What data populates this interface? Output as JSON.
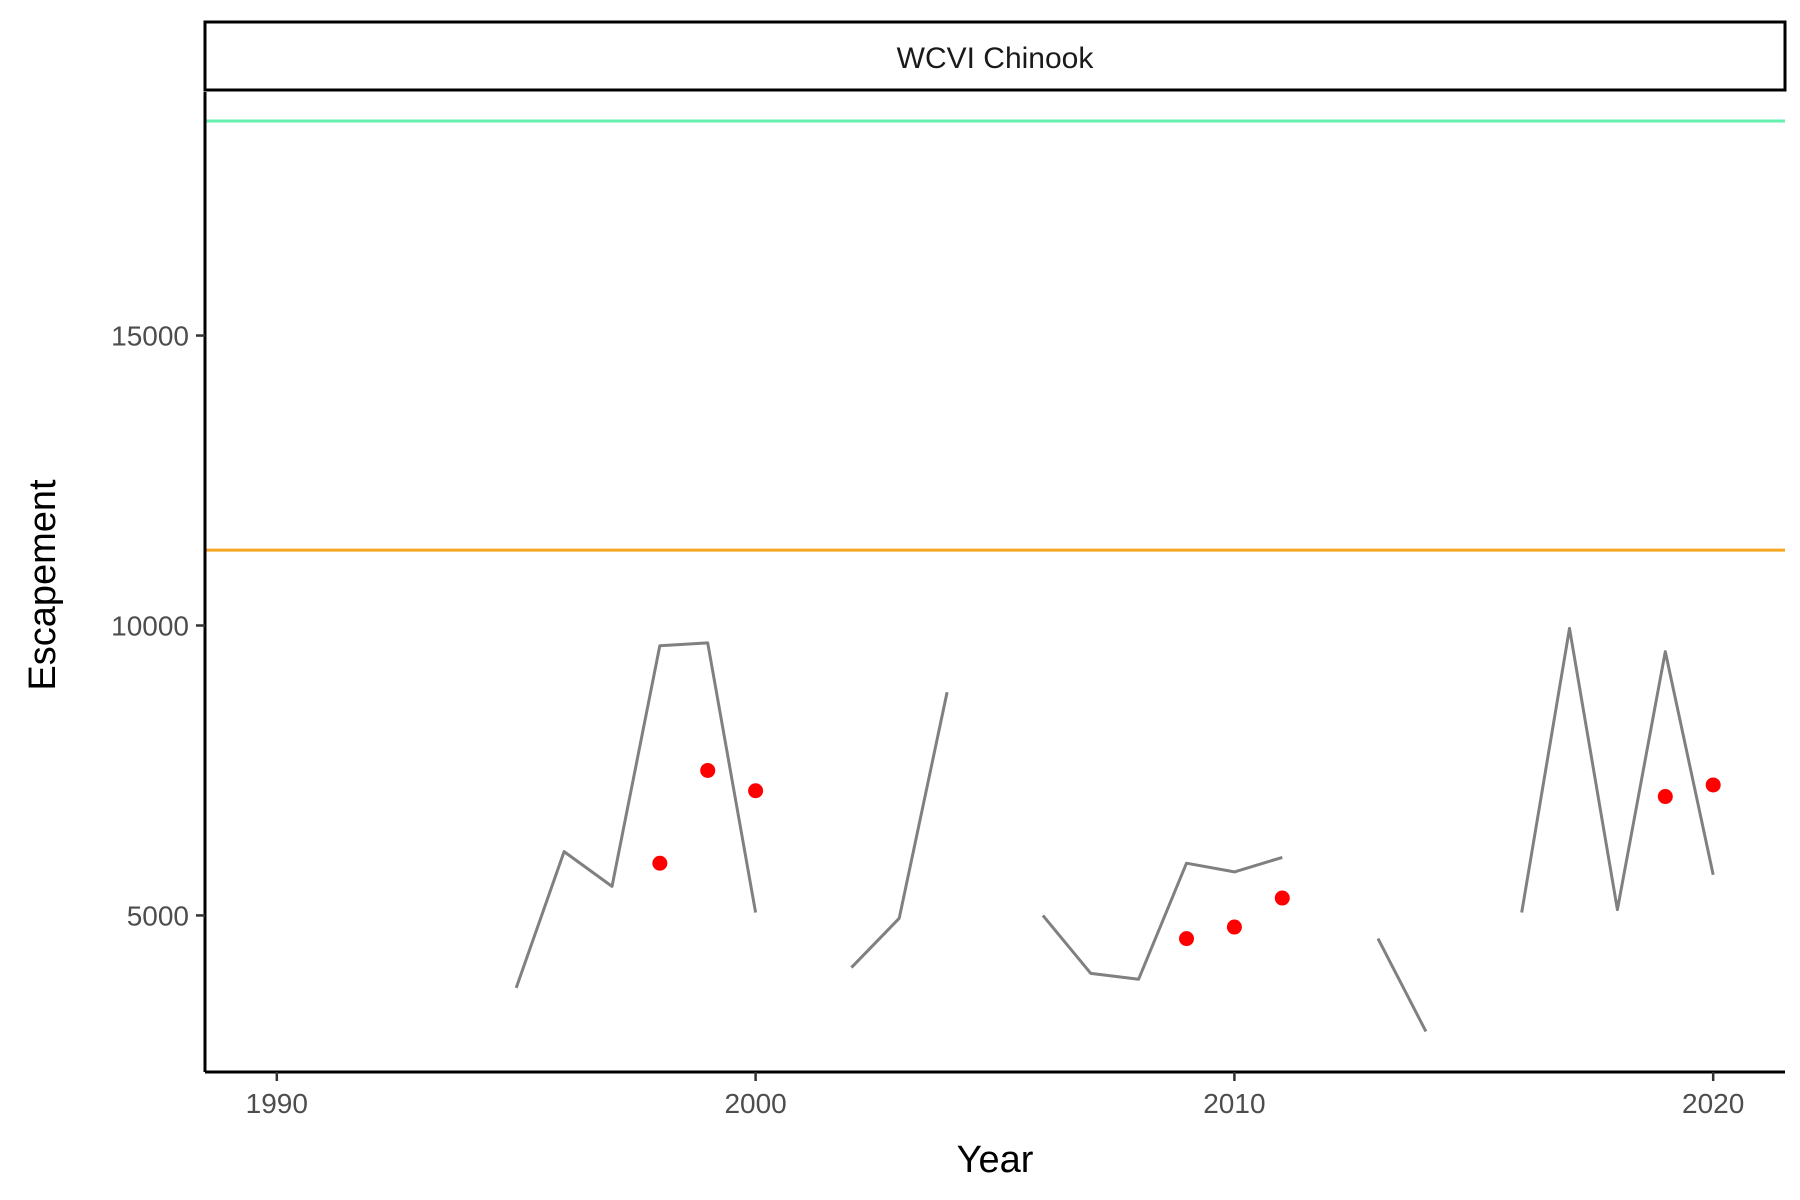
{
  "chart_data": {
    "type": "line",
    "facet_title": "WCVI Chinook",
    "xlabel": "Year",
    "ylabel": "Escapement",
    "xlim": [
      1988.5,
      2021.5
    ],
    "ylim": [
      2300,
      19200
    ],
    "x_ticks": [
      1990,
      2000,
      2010,
      2020
    ],
    "y_ticks": [
      5000,
      10000,
      15000
    ],
    "grid": false,
    "reference_lines": [
      {
        "y": 18700,
        "color": "#66f0b0"
      },
      {
        "y": 11300,
        "color": "#f5a623"
      }
    ],
    "series": [
      {
        "type": "line",
        "color": "#808080",
        "segments": [
          [
            [
              1995,
              3750
            ],
            [
              1996,
              6100
            ],
            [
              1997,
              5500
            ],
            [
              1998,
              9650
            ],
            [
              1999,
              9700
            ],
            [
              2000,
              5050
            ]
          ],
          [
            [
              2002,
              4100
            ],
            [
              2003,
              4950
            ],
            [
              2004,
              8850
            ]
          ],
          [
            [
              2006,
              5000
            ],
            [
              2007,
              4000
            ],
            [
              2008,
              3900
            ],
            [
              2009,
              5900
            ],
            [
              2010,
              5750
            ],
            [
              2011,
              6000
            ]
          ],
          [
            [
              2013,
              4600
            ],
            [
              2014,
              3000
            ]
          ],
          [
            [
              2016,
              5050
            ],
            [
              2017,
              9950
            ],
            [
              2018,
              5100
            ],
            [
              2019,
              9550
            ],
            [
              2020,
              5700
            ]
          ]
        ]
      },
      {
        "type": "scatter",
        "color": "#ff0000",
        "points": [
          [
            1998,
            5900
          ],
          [
            1999,
            7500
          ],
          [
            2000,
            7150
          ],
          [
            2009,
            4600
          ],
          [
            2010,
            4800
          ],
          [
            2011,
            5300
          ],
          [
            2019,
            7050
          ],
          [
            2020,
            7250
          ]
        ]
      }
    ]
  }
}
